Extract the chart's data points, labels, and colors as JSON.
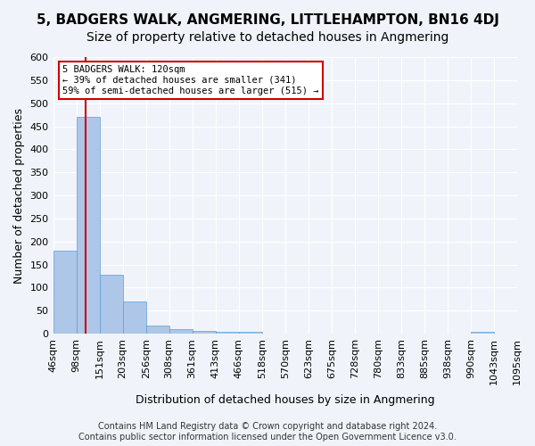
{
  "title": "5, BADGERS WALK, ANGMERING, LITTLEHAMPTON, BN16 4DJ",
  "subtitle": "Size of property relative to detached houses in Angmering",
  "xlabel": "Distribution of detached houses by size in Angmering",
  "ylabel": "Number of detached properties",
  "bin_labels": [
    "46sqm",
    "98sqm",
    "151sqm",
    "203sqm",
    "256sqm",
    "308sqm",
    "361sqm",
    "413sqm",
    "466sqm",
    "518sqm",
    "570sqm",
    "623sqm",
    "675sqm",
    "728sqm",
    "780sqm",
    "833sqm",
    "885sqm",
    "938sqm",
    "990sqm",
    "1043sqm",
    "1095sqm"
  ],
  "bar_heights": [
    180,
    470,
    128,
    70,
    18,
    10,
    7,
    5,
    5,
    0,
    0,
    0,
    0,
    0,
    0,
    0,
    0,
    0,
    5,
    0
  ],
  "bar_color": "#aec6e8",
  "bar_edge_color": "#5a9fd4",
  "red_line_color": "#cc0000",
  "annotation_text": "5 BADGERS WALK: 120sqm\n← 39% of detached houses are smaller (341)\n59% of semi-detached houses are larger (515) →",
  "annotation_box_color": "#ffffff",
  "annotation_box_edge": "#cc0000",
  "ylim": [
    0,
    600
  ],
  "yticks": [
    0,
    50,
    100,
    150,
    200,
    250,
    300,
    350,
    400,
    450,
    500,
    550,
    600
  ],
  "footer": "Contains HM Land Registry data © Crown copyright and database right 2024.\nContains public sector information licensed under the Open Government Licence v3.0.",
  "bg_color": "#f0f4fa",
  "grid_color": "#ffffff",
  "title_fontsize": 11,
  "subtitle_fontsize": 10,
  "axis_label_fontsize": 9,
  "tick_fontsize": 8,
  "footer_fontsize": 7
}
